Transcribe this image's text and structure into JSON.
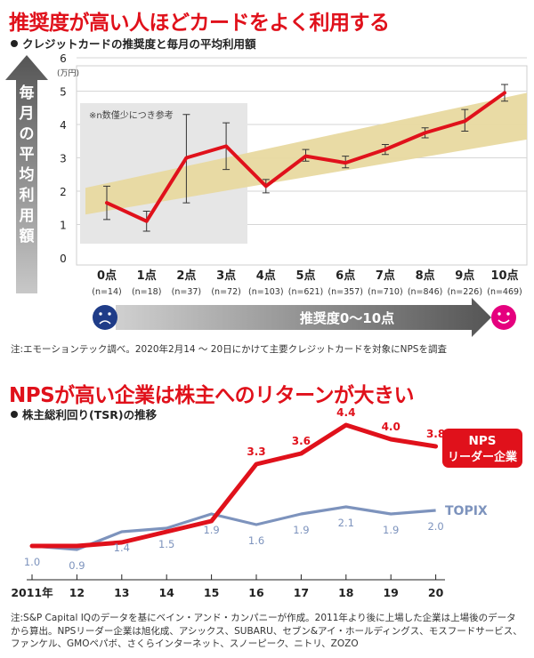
{
  "chart_data": [
    {
      "type": "line",
      "title": "推奨度が高い人ほどカードをよく利用する",
      "subtitle": "クレジットカードの推奨度と毎月の平均利用額",
      "ylabel": "毎月の平均利用額",
      "yunit": "(万円)",
      "xlabel": "推奨度0〜10点",
      "ylim": [
        0,
        6
      ],
      "yticks": [
        "0",
        "1",
        "2",
        "3",
        "4",
        "5",
        "6"
      ],
      "categories": [
        "0点",
        "1点",
        "2点",
        "3点",
        "4点",
        "5点",
        "6点",
        "7点",
        "8点",
        "9点",
        "10点"
      ],
      "sample_sizes": [
        "(n=14)",
        "(n=18)",
        "(n=37)",
        "(n=72)",
        "(n=103)",
        "(n=621)",
        "(n=357)",
        "(n=710)",
        "(n=846)",
        "(n=226)",
        "(n=469)"
      ],
      "values": [
        1.65,
        1.1,
        3.0,
        3.35,
        2.15,
        3.05,
        2.85,
        3.25,
        3.75,
        4.1,
        4.95
      ],
      "error_low": [
        1.15,
        0.8,
        1.65,
        2.65,
        1.95,
        2.9,
        2.7,
        3.1,
        3.6,
        3.8,
        4.7
      ],
      "error_high": [
        2.15,
        1.4,
        4.3,
        4.05,
        2.35,
        3.25,
        3.05,
        3.4,
        3.9,
        4.45,
        5.2
      ],
      "trend_band": {
        "start_low": 1.3,
        "start_high": 2.1,
        "end_low": 3.55,
        "end_high": 4.95
      },
      "reference_note": "※n数僅少につき参考",
      "reference_range": [
        "0点",
        "3点"
      ],
      "grid": true,
      "colors": {
        "line": "#e0111b",
        "band": "#e8d9a0",
        "reference_box": "#e6e6e6"
      }
    },
    {
      "type": "line",
      "title": "NPSが高い企業は株主へのリターンが大きい",
      "subtitle": "株主総利回り(TSR)の推移",
      "categories": [
        "2011年",
        "12",
        "13",
        "14",
        "15",
        "16",
        "17",
        "18",
        "19",
        "20"
      ],
      "ylim": [
        0.6,
        4.6
      ],
      "series": [
        {
          "name": "NPSリーダー企業",
          "values": [
            1.0,
            1.0,
            1.1,
            1.4,
            1.7,
            3.3,
            3.6,
            4.4,
            4.0,
            3.8
          ],
          "labels": [
            "",
            "",
            "",
            "",
            "",
            "3.3",
            "3.6",
            "4.4",
            "4.0",
            "3.8"
          ],
          "color": "#e0111b"
        },
        {
          "name": "TOPIX",
          "values": [
            1.0,
            0.9,
            1.4,
            1.5,
            1.9,
            1.6,
            1.9,
            2.1,
            1.9,
            2.0
          ],
          "labels": [
            "1.0",
            "0.9",
            "1.4",
            "1.5",
            "1.9",
            "1.6",
            "1.9",
            "2.1",
            "1.9",
            "2.0"
          ],
          "color": "#7d93bd"
        }
      ],
      "legend_nps_line1": "NPS",
      "legend_nps_line2": "リーダー企業"
    }
  ],
  "notes": {
    "top": "注:エモーションテック調べ。2020年2月14 〜 20日にかけて主要クレジットカードを対象にNPSを調査",
    "bottom": "注:S&P Capital IQのデータを基にベイン・アンド・カンパニーが作成。2011年より後に上場した企業は上場後のデータから算出。NPSリーダー企業は旭化成、アシックス、SUBARU、セブン&アイ・ホールディングス、モスフードサービス、ファンケル、GMOペパボ、さくらインターネット、スノーピーク、ニトリ、ZOZO"
  }
}
